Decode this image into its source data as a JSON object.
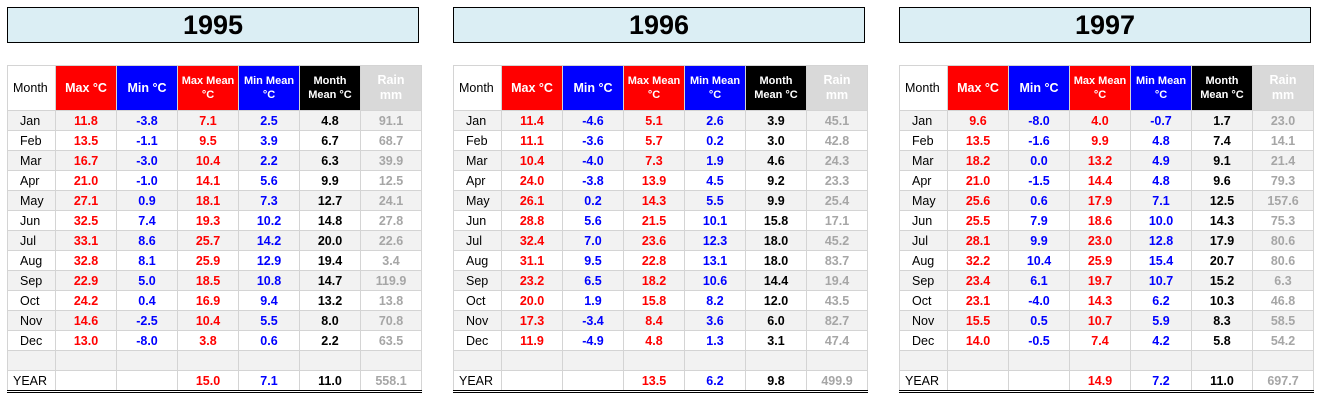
{
  "headers": {
    "month": "Month",
    "max": "Max °C",
    "min": "Min °C",
    "max_mean_1": "Max Mean",
    "max_mean_2": "°C",
    "min_mean_1": "Min Mean",
    "min_mean_2": "°C",
    "month_mean_1": "Month",
    "month_mean_2": "Mean °C",
    "rain_1": "Rain",
    "rain_2": "mm"
  },
  "colors": {
    "max": "#ff0000",
    "min": "#0000ff",
    "mean": "#000000",
    "rain": "#a6a6a6",
    "title_bg": "#dbeef4"
  },
  "year_label": "YEAR",
  "panels": [
    {
      "title": "1995",
      "rows": [
        [
          "Jan",
          "11.8",
          "-3.8",
          "7.1",
          "2.5",
          "4.8",
          "91.1"
        ],
        [
          "Feb",
          "13.5",
          "-1.1",
          "9.5",
          "3.9",
          "6.7",
          "68.7"
        ],
        [
          "Mar",
          "16.7",
          "-3.0",
          "10.4",
          "2.2",
          "6.3",
          "39.9"
        ],
        [
          "Apr",
          "21.0",
          "-1.0",
          "14.1",
          "5.6",
          "9.9",
          "12.5"
        ],
        [
          "May",
          "27.1",
          "0.9",
          "18.1",
          "7.3",
          "12.7",
          "24.1"
        ],
        [
          "Jun",
          "32.5",
          "7.4",
          "19.3",
          "10.2",
          "14.8",
          "27.8"
        ],
        [
          "Jul",
          "33.1",
          "8.6",
          "25.7",
          "14.2",
          "20.0",
          "22.6"
        ],
        [
          "Aug",
          "32.8",
          "8.1",
          "25.9",
          "12.9",
          "19.4",
          "3.4"
        ],
        [
          "Sep",
          "22.9",
          "5.0",
          "18.5",
          "10.8",
          "14.7",
          "119.9"
        ],
        [
          "Oct",
          "24.2",
          "0.4",
          "16.9",
          "9.4",
          "13.2",
          "13.8"
        ],
        [
          "Nov",
          "14.6",
          "-2.5",
          "10.4",
          "5.5",
          "8.0",
          "70.8"
        ],
        [
          "Dec",
          "13.0",
          "-8.0",
          "3.8",
          "0.6",
          "2.2",
          "63.5"
        ]
      ],
      "year": {
        "max_mean": "15.0",
        "min_mean": "7.1",
        "month_mean": "11.0",
        "rain": "558.1"
      }
    },
    {
      "title": "1996",
      "rows": [
        [
          "Jan",
          "11.4",
          "-4.6",
          "5.1",
          "2.6",
          "3.9",
          "45.1"
        ],
        [
          "Feb",
          "11.1",
          "-3.6",
          "5.7",
          "0.2",
          "3.0",
          "42.8"
        ],
        [
          "Mar",
          "10.4",
          "-4.0",
          "7.3",
          "1.9",
          "4.6",
          "24.3"
        ],
        [
          "Apr",
          "24.0",
          "-3.8",
          "13.9",
          "4.5",
          "9.2",
          "23.3"
        ],
        [
          "May",
          "26.1",
          "0.2",
          "14.3",
          "5.5",
          "9.9",
          "25.4"
        ],
        [
          "Jun",
          "28.8",
          "5.6",
          "21.5",
          "10.1",
          "15.8",
          "17.1"
        ],
        [
          "Jul",
          "32.4",
          "7.0",
          "23.6",
          "12.3",
          "18.0",
          "45.2"
        ],
        [
          "Aug",
          "31.1",
          "9.5",
          "22.8",
          "13.1",
          "18.0",
          "83.7"
        ],
        [
          "Sep",
          "23.2",
          "6.5",
          "18.2",
          "10.6",
          "14.4",
          "19.4"
        ],
        [
          "Oct",
          "20.0",
          "1.9",
          "15.8",
          "8.2",
          "12.0",
          "43.5"
        ],
        [
          "Nov",
          "17.3",
          "-3.4",
          "8.4",
          "3.6",
          "6.0",
          "82.7"
        ],
        [
          "Dec",
          "11.9",
          "-4.9",
          "4.8",
          "1.3",
          "3.1",
          "47.4"
        ]
      ],
      "year": {
        "max_mean": "13.5",
        "min_mean": "6.2",
        "month_mean": "9.8",
        "rain": "499.9"
      }
    },
    {
      "title": "1997",
      "rows": [
        [
          "Jan",
          "9.6",
          "-8.0",
          "4.0",
          "-0.7",
          "1.7",
          "23.0"
        ],
        [
          "Feb",
          "13.5",
          "-1.6",
          "9.9",
          "4.8",
          "7.4",
          "14.1"
        ],
        [
          "Mar",
          "18.2",
          "0.0",
          "13.2",
          "4.9",
          "9.1",
          "21.4"
        ],
        [
          "Apr",
          "21.0",
          "-1.5",
          "14.4",
          "4.8",
          "9.6",
          "79.3"
        ],
        [
          "May",
          "25.6",
          "0.6",
          "17.9",
          "7.1",
          "12.5",
          "157.6"
        ],
        [
          "Jun",
          "25.5",
          "7.9",
          "18.6",
          "10.0",
          "14.3",
          "75.3"
        ],
        [
          "Jul",
          "28.1",
          "9.9",
          "23.0",
          "12.8",
          "17.9",
          "80.6"
        ],
        [
          "Aug",
          "32.2",
          "10.4",
          "25.9",
          "15.4",
          "20.7",
          "80.6"
        ],
        [
          "Sep",
          "23.4",
          "6.1",
          "19.7",
          "10.7",
          "15.2",
          "6.3"
        ],
        [
          "Oct",
          "23.1",
          "-4.0",
          "14.3",
          "6.2",
          "10.3",
          "46.8"
        ],
        [
          "Nov",
          "15.5",
          "0.5",
          "10.7",
          "5.9",
          "8.3",
          "58.5"
        ],
        [
          "Dec",
          "14.0",
          "-0.5",
          "7.4",
          "4.2",
          "5.8",
          "54.2"
        ]
      ],
      "year": {
        "max_mean": "14.9",
        "min_mean": "7.2",
        "month_mean": "11.0",
        "rain": "697.7"
      }
    }
  ]
}
